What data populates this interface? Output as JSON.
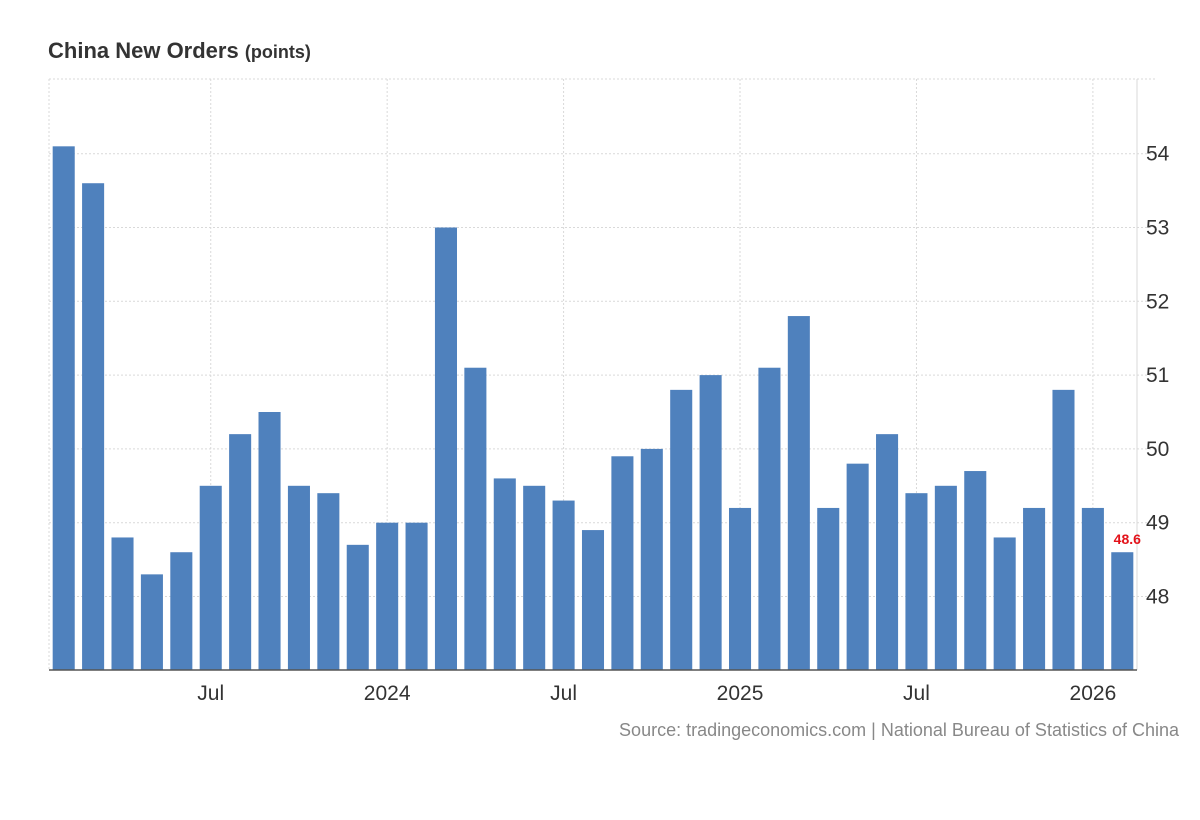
{
  "chart_data": {
    "type": "bar",
    "title": "China New Orders",
    "unit": "(points)",
    "xlabel": "",
    "ylabel": "",
    "ylim": [
      47,
      55
    ],
    "y_ticks": [
      48,
      49,
      50,
      51,
      52,
      53,
      54
    ],
    "x_ticks": [
      {
        "index": 5,
        "label": "Jul"
      },
      {
        "index": 11,
        "label": "2024"
      },
      {
        "index": 17,
        "label": "Jul"
      },
      {
        "index": 23,
        "label": "2025"
      },
      {
        "index": 29,
        "label": "Jul"
      },
      {
        "index": 35,
        "label": "2026"
      }
    ],
    "categories": [
      "Feb 2023",
      "Mar 2023",
      "Apr 2023",
      "May 2023",
      "Jun 2023",
      "Jul 2023",
      "Aug 2023",
      "Sep 2023",
      "Oct 2023",
      "Nov 2023",
      "Dec 2023",
      "Jan 2024",
      "Feb 2024",
      "Mar 2024",
      "Apr 2024",
      "May 2024",
      "Jun 2024",
      "Jul 2024",
      "Aug 2024",
      "Sep 2024",
      "Oct 2024",
      "Nov 2024",
      "Dec 2024",
      "Jan 2025",
      "Feb 2025",
      "Mar 2025",
      "Apr 2025",
      "May 2025",
      "Jun 2025",
      "Jul 2025",
      "Aug 2025",
      "Sep 2025",
      "Oct 2025",
      "Nov 2025",
      "Dec 2025",
      "Jan 2026",
      "Feb 2026"
    ],
    "series": [
      {
        "name": "China New Orders",
        "values": [
          54.1,
          53.6,
          48.8,
          48.3,
          48.6,
          49.5,
          50.2,
          50.5,
          49.5,
          49.4,
          48.7,
          49.0,
          49.0,
          53.0,
          51.1,
          49.6,
          49.5,
          49.3,
          48.9,
          49.9,
          50.0,
          50.8,
          51.0,
          49.2,
          51.1,
          51.8,
          49.2,
          49.8,
          50.2,
          49.4,
          49.5,
          49.7,
          48.8,
          49.2,
          50.8,
          49.2,
          48.6
        ]
      }
    ],
    "last_value_label": "48.6",
    "grid": true,
    "colors": {
      "bar": "#4F81BD",
      "last_label": "#E3121A",
      "grid": "#d9d9d9",
      "axis": "#555555"
    }
  },
  "source": "Source: tradingeconomics.com | National Bureau of Statistics of China"
}
